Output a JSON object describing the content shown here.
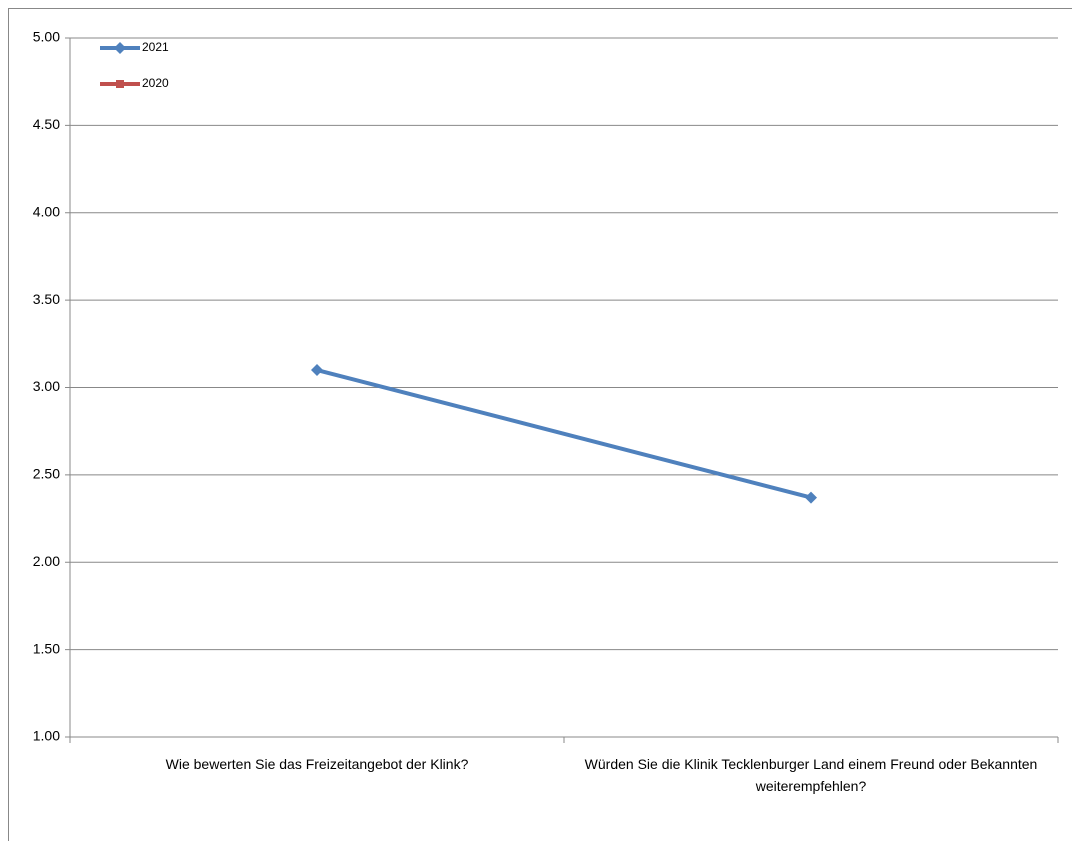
{
  "chart_data": {
    "type": "line",
    "categories": [
      "Wie bewerten Sie das Freizeitangebot der Klink?",
      "Würden Sie die Klinik Tecklenburger Land einem Freund oder Bekannten weiterempfehlen?"
    ],
    "series": [
      {
        "name": "2021",
        "color": "#4f81bd",
        "marker": "diamond",
        "values": [
          3.1,
          2.37
        ]
      },
      {
        "name": "2020",
        "color": "#c0504d",
        "marker": "square",
        "values": [
          null,
          null
        ]
      }
    ],
    "ylim": [
      1,
      5
    ],
    "yticks": [
      {
        "value": 1,
        "label": "1.00"
      },
      {
        "value": 1.5,
        "label": "1.50"
      },
      {
        "value": 2,
        "label": "2.00"
      },
      {
        "value": 2.5,
        "label": "2.50"
      },
      {
        "value": 3,
        "label": "3.00"
      },
      {
        "value": 3.5,
        "label": "3.50"
      },
      {
        "value": 4,
        "label": "4.00"
      },
      {
        "value": 4.5,
        "label": "4.50"
      },
      {
        "value": 5,
        "label": "5.00"
      }
    ],
    "grid": true,
    "legend": "top-left"
  }
}
